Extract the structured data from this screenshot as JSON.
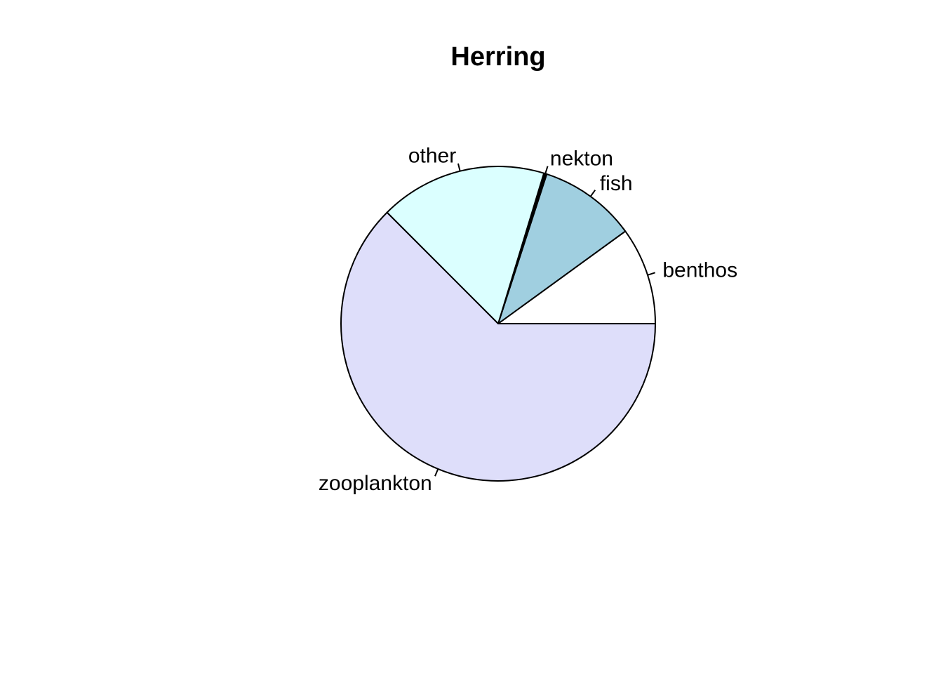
{
  "chart_data": {
    "type": "pie",
    "title": "Herring",
    "start_angle_deg": 0,
    "direction": "counterclockwise",
    "slices": [
      {
        "label": "benthos",
        "value": 0.1,
        "color": "#ffffff"
      },
      {
        "label": "fish",
        "value": 0.1,
        "color": "#a0cfe0"
      },
      {
        "label": "nekton",
        "value": 0.003,
        "color": "#000000"
      },
      {
        "label": "other",
        "value": 0.172,
        "color": "#dbffff"
      },
      {
        "label": "zooplankton",
        "value": 0.625,
        "color": "#dedefa"
      }
    ]
  }
}
